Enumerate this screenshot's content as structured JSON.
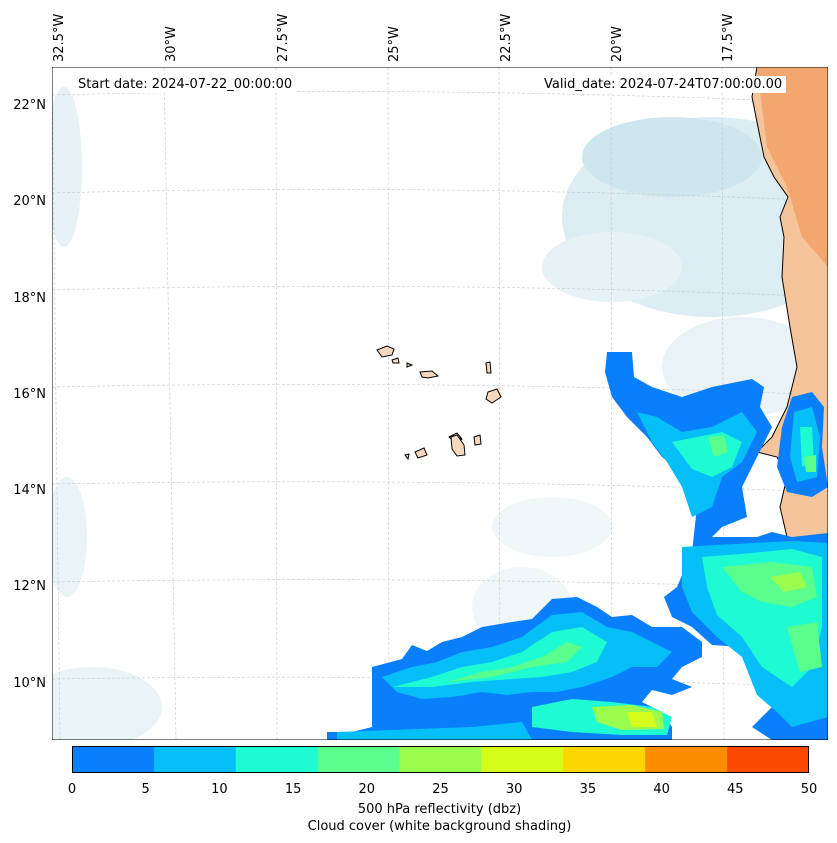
{
  "map": {
    "start_date_label": "Start date: 2024-07-22_00:00:00",
    "valid_date_label": "Valid_date: 2024-07-24T07:00:00.00",
    "lon_labels": [
      "32.5°W",
      "30°W",
      "27.5°W",
      "25°W",
      "22.5°W",
      "20°W",
      "17.5°W"
    ],
    "lat_labels": [
      "22°N",
      "20°N",
      "18°N",
      "16°N",
      "14°N",
      "12°N",
      "10°N"
    ],
    "gridlines": true
  },
  "colorbar": {
    "ticks": [
      "0",
      "5",
      "10",
      "15",
      "20",
      "25",
      "30",
      "35",
      "40",
      "45",
      "50"
    ],
    "colors": [
      "#0a7ffb",
      "#06bff9",
      "#1efad2",
      "#5afe8c",
      "#9afc4c",
      "#d6fc1c",
      "#fbd600",
      "#fc8c00",
      "#fc4a00"
    ],
    "label_line1": "500 hPa reflectivity (dbz)",
    "label_line2": "Cloud cover (white background shading)"
  },
  "colors": {
    "land_orange": "#f6b37f",
    "cloud_blue": "#cfe6ef"
  }
}
